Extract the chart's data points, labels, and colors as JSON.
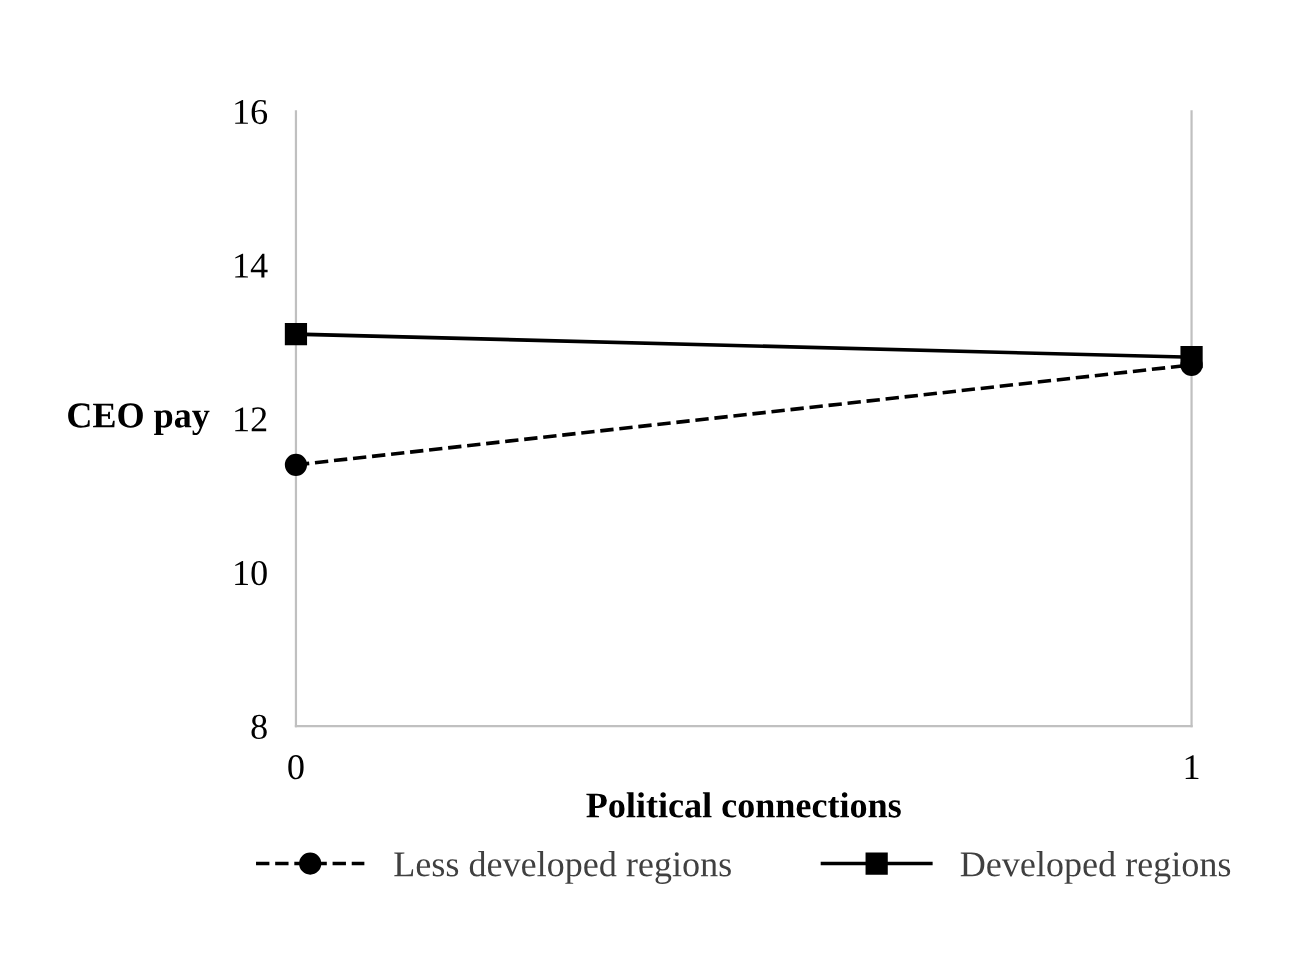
{
  "chart_data": {
    "type": "line",
    "xlabel": "Political connections",
    "ylabel": "CEO pay",
    "x": [
      0,
      1
    ],
    "xlim": [
      0,
      1
    ],
    "xticks": [
      0,
      1
    ],
    "ylim": [
      8,
      16
    ],
    "yticks": [
      8,
      10,
      12,
      14,
      16
    ],
    "series": [
      {
        "name": "Less developed regions",
        "color": "#000000",
        "values": [
          11.4,
          12.7
        ],
        "marker": "circle",
        "line_style": "dashed"
      },
      {
        "name": "Developed regions",
        "color": "#000000",
        "values": [
          13.1,
          12.8
        ],
        "marker": "square",
        "line_style": "solid"
      }
    ],
    "grid": false,
    "legend": "bottom"
  }
}
